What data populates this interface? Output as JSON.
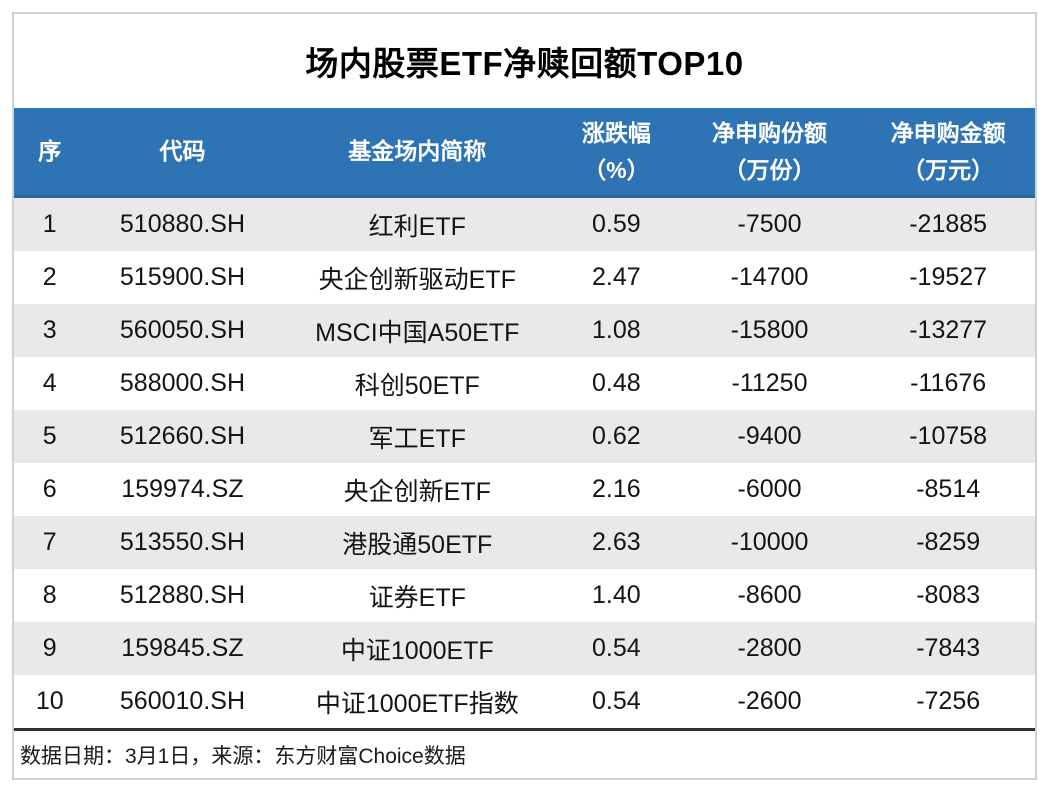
{
  "title": "场内股票ETF净赎回额TOP10",
  "table": {
    "columns": [
      {
        "label": "序",
        "unit": ""
      },
      {
        "label": "代码",
        "unit": ""
      },
      {
        "label": "基金场内简称",
        "unit": ""
      },
      {
        "label": "涨跌幅",
        "unit": "（%）"
      },
      {
        "label": "净申购份额",
        "unit": "（万份）"
      },
      {
        "label": "净申购金额",
        "unit": "（万元）"
      }
    ],
    "rows": [
      {
        "rank": "1",
        "code": "510880.SH",
        "name": "红利ETF",
        "change_pct": "0.59",
        "net_shares": "-7500",
        "net_amount": "-21885"
      },
      {
        "rank": "2",
        "code": "515900.SH",
        "name": "央企创新驱动ETF",
        "change_pct": "2.47",
        "net_shares": "-14700",
        "net_amount": "-19527"
      },
      {
        "rank": "3",
        "code": "560050.SH",
        "name": "MSCI中国A50ETF",
        "change_pct": "1.08",
        "net_shares": "-15800",
        "net_amount": "-13277"
      },
      {
        "rank": "4",
        "code": "588000.SH",
        "name": "科创50ETF",
        "change_pct": "0.48",
        "net_shares": "-11250",
        "net_amount": "-11676"
      },
      {
        "rank": "5",
        "code": "512660.SH",
        "name": "军工ETF",
        "change_pct": "0.62",
        "net_shares": "-9400",
        "net_amount": "-10758"
      },
      {
        "rank": "6",
        "code": "159974.SZ",
        "name": "央企创新ETF",
        "change_pct": "2.16",
        "net_shares": "-6000",
        "net_amount": "-8514"
      },
      {
        "rank": "7",
        "code": "513550.SH",
        "name": "港股通50ETF",
        "change_pct": "2.63",
        "net_shares": "-10000",
        "net_amount": "-8259"
      },
      {
        "rank": "8",
        "code": "512880.SH",
        "name": "证券ETF",
        "change_pct": "1.40",
        "net_shares": "-8600",
        "net_amount": "-8083"
      },
      {
        "rank": "9",
        "code": "159845.SZ",
        "name": "中证1000ETF",
        "change_pct": "0.54",
        "net_shares": "-2800",
        "net_amount": "-7843"
      },
      {
        "rank": "10",
        "code": "560010.SH",
        "name": "中证1000ETF指数",
        "change_pct": "0.54",
        "net_shares": "-2600",
        "net_amount": "-7256"
      }
    ]
  },
  "footer": {
    "text": "数据日期：3月1日，来源：东方财富Choice数据"
  },
  "colors": {
    "header_bg": "#2E74B5",
    "header_text": "#FFFFFF",
    "row_alt_bg": "#E9E9E9",
    "rule": "#2F2F2F",
    "frame_border": "#CCD1DA"
  },
  "chart_data": {
    "type": "table",
    "title": "场内股票ETF净赎回额TOP10",
    "columns": [
      "序",
      "代码",
      "基金场内简称",
      "涨跌幅（%）",
      "净申购份额（万份）",
      "净申购金额（万元）"
    ],
    "rows": [
      [
        1,
        "510880.SH",
        "红利ETF",
        0.59,
        -7500,
        -21885
      ],
      [
        2,
        "515900.SH",
        "央企创新驱动ETF",
        2.47,
        -14700,
        -19527
      ],
      [
        3,
        "560050.SH",
        "MSCI中国A50ETF",
        1.08,
        -15800,
        -13277
      ],
      [
        4,
        "588000.SH",
        "科创50ETF",
        0.48,
        -11250,
        -11676
      ],
      [
        5,
        "512660.SH",
        "军工ETF",
        0.62,
        -9400,
        -10758
      ],
      [
        6,
        "159974.SZ",
        "央企创新ETF",
        2.16,
        -6000,
        -8514
      ],
      [
        7,
        "513550.SH",
        "港股通50ETF",
        2.63,
        -10000,
        -8259
      ],
      [
        8,
        "512880.SH",
        "证券ETF",
        1.4,
        -8600,
        -8083
      ],
      [
        9,
        "159845.SZ",
        "中证1000ETF",
        0.54,
        -2800,
        -7843
      ],
      [
        10,
        "560010.SH",
        "中证1000ETF指数",
        0.54,
        -2600,
        -7256
      ]
    ],
    "source_note": "数据日期：3月1日，来源：东方财富Choice数据"
  }
}
